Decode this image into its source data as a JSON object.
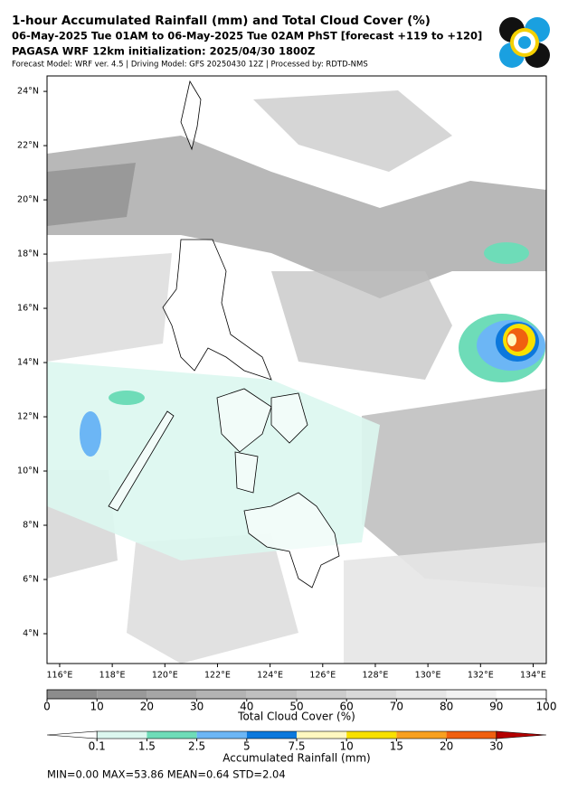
{
  "header": {
    "title": "1-hour Accumulated Rainfall (mm) and Total Cloud Cover (%)",
    "subtitle": "06-May-2025 Tue 01AM to 06-May-2025 Tue 02AM PhST [forecast +119 to +120]",
    "initialization": "PAGASA WRF 12km initialization: 2025/04/30 1800Z",
    "model_line": "Forecast Model: WRF ver. 4.5 | Driving Model: GFS 20250430 12Z | Processed by: RDTD-NMS"
  },
  "map": {
    "xlim": [
      115.52,
      134.5
    ],
    "ylim": [
      2.9,
      24.57
    ],
    "xticks": [
      {
        "value": 116,
        "label": "116°E"
      },
      {
        "value": 118,
        "label": "118°E"
      },
      {
        "value": 120,
        "label": "120°E"
      },
      {
        "value": 122,
        "label": "122°E"
      },
      {
        "value": 124,
        "label": "124°E"
      },
      {
        "value": 126,
        "label": "126°E"
      },
      {
        "value": 128,
        "label": "128°E"
      },
      {
        "value": 130,
        "label": "130°E"
      },
      {
        "value": 132,
        "label": "132°E"
      },
      {
        "value": 134,
        "label": "134°E"
      }
    ],
    "yticks": [
      {
        "value": 4,
        "label": "4°N"
      },
      {
        "value": 6,
        "label": "6°N"
      },
      {
        "value": 8,
        "label": "8°N"
      },
      {
        "value": 10,
        "label": "10°N"
      },
      {
        "value": 12,
        "label": "12°N"
      },
      {
        "value": 14,
        "label": "14°N"
      },
      {
        "value": 16,
        "label": "16°N"
      },
      {
        "value": 18,
        "label": "18°N"
      },
      {
        "value": 20,
        "label": "20°N"
      },
      {
        "value": 22,
        "label": "22°N"
      },
      {
        "value": 24,
        "label": "24°N"
      }
    ]
  },
  "cloud_colorbar": {
    "label": "Total Cloud Cover (%)",
    "clim": [
      0,
      100
    ],
    "ticks": [
      0,
      10,
      20,
      30,
      40,
      50,
      60,
      70,
      80,
      90,
      100
    ],
    "colors": [
      "#8c8c8c",
      "#999999",
      "#a6a6a6",
      "#b3b3b3",
      "#bfbfbf",
      "#cccccc",
      "#d9d9d9",
      "#e6e6e6",
      "#f2f2f2",
      "#ffffff"
    ]
  },
  "rain_colorbar": {
    "label": "Accumulated Rainfall (mm)",
    "ticks": [
      0.1,
      1.5,
      2.5,
      5,
      7.5,
      10,
      15,
      20,
      30
    ],
    "under_color": "#ffffff",
    "over_color": "#b40000",
    "colors": [
      "#dcf7ef",
      "#6edcb8",
      "#6cb6f5",
      "#0c78dc",
      "#fff8c0",
      "#f8e000",
      "#f8a020",
      "#f06010"
    ]
  },
  "stats": "MIN=0.00   MAX=53.86   MEAN=0.64   STD=2.04"
}
